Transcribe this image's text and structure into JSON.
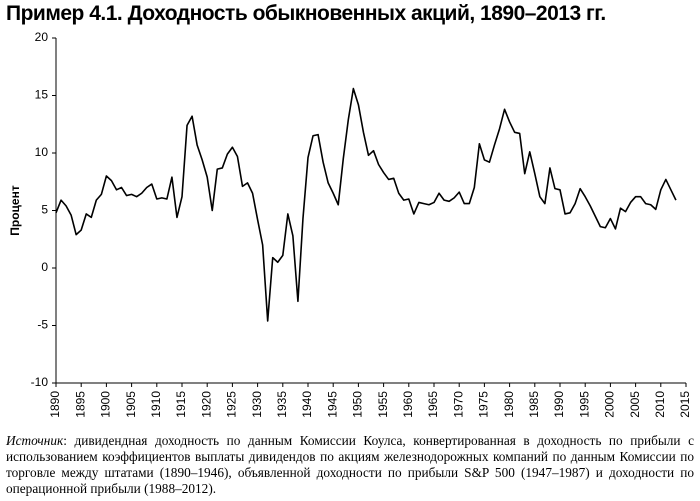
{
  "chart_data": {
    "type": "line",
    "title": "Пример 4.1. Доходность обыкновенных акций, 1890–2013 гг.",
    "y_label": "Процент",
    "note_label": "Источник",
    "note": ": дивидендная доходность по данным Комиссии Коулса, конвертированная в доходность по прибыли с использованием коэффициентов выплаты дивидендов по акциям железнодорожных компаний по данным Комиссии по торговле между штатами (1890–1946), объявленной доходности по прибыли S&P 500 (1947–1987) и доходности по операционной прибыли (1988–2012).",
    "x": [
      1890,
      1891,
      1892,
      1893,
      1894,
      1895,
      1896,
      1897,
      1898,
      1899,
      1900,
      1901,
      1902,
      1903,
      1904,
      1905,
      1906,
      1907,
      1908,
      1909,
      1910,
      1911,
      1912,
      1913,
      1914,
      1915,
      1916,
      1917,
      1918,
      1919,
      1920,
      1921,
      1922,
      1923,
      1924,
      1925,
      1926,
      1927,
      1928,
      1929,
      1930,
      1931,
      1932,
      1933,
      1934,
      1935,
      1936,
      1937,
      1938,
      1939,
      1940,
      1941,
      1942,
      1943,
      1944,
      1945,
      1946,
      1947,
      1948,
      1949,
      1950,
      1951,
      1952,
      1953,
      1954,
      1955,
      1956,
      1957,
      1958,
      1959,
      1960,
      1961,
      1962,
      1963,
      1964,
      1965,
      1966,
      1967,
      1968,
      1969,
      1970,
      1971,
      1972,
      1973,
      1974,
      1975,
      1976,
      1977,
      1978,
      1979,
      1980,
      1981,
      1982,
      1983,
      1984,
      1985,
      1986,
      1987,
      1988,
      1989,
      1990,
      1991,
      1992,
      1993,
      1994,
      1995,
      1996,
      1997,
      1998,
      1999,
      2000,
      2001,
      2002,
      2003,
      2004,
      2005,
      2006,
      2007,
      2008,
      2009,
      2010,
      2011,
      2012,
      2013
    ],
    "series": [
      {
        "color": "#000000",
        "values": [
          4.8,
          5.9,
          5.4,
          4.6,
          2.9,
          3.3,
          4.7,
          4.4,
          5.9,
          6.4,
          8.0,
          7.6,
          6.8,
          7.0,
          6.3,
          6.4,
          6.2,
          6.5,
          7.0,
          7.3,
          6.0,
          6.1,
          6.0,
          7.9,
          4.4,
          6.2,
          12.4,
          13.2,
          10.7,
          9.4,
          7.9,
          5.0,
          8.6,
          8.7,
          9.9,
          10.5,
          9.7,
          7.1,
          7.4,
          6.5,
          4.2,
          2.0,
          -4.6,
          0.9,
          0.5,
          1.1,
          4.7,
          2.8,
          -2.9,
          4.3,
          9.6,
          11.5,
          11.6,
          9.2,
          7.4,
          6.5,
          5.5,
          9.5,
          12.9,
          15.6,
          14.2,
          11.8,
          9.8,
          10.2,
          9.0,
          8.3,
          7.7,
          7.8,
          6.5,
          5.9,
          6.0,
          4.7,
          5.7,
          5.6,
          5.5,
          5.7,
          6.5,
          5.9,
          5.8,
          6.1,
          6.6,
          5.6,
          5.6,
          7.0,
          10.8,
          9.4,
          9.2,
          10.7,
          12.1,
          13.8,
          12.7,
          11.8,
          11.7,
          8.2,
          10.1,
          8.2,
          6.2,
          5.6,
          8.7,
          6.9,
          6.8,
          4.7,
          4.8,
          5.6,
          6.9,
          6.2,
          5.4,
          4.5,
          3.6,
          3.5,
          4.3,
          3.4,
          5.2,
          4.9,
          5.7,
          6.2,
          6.2,
          5.6,
          5.5,
          5.1,
          6.8,
          7.7,
          6.8,
          5.9
        ]
      }
    ],
    "xlim": [
      1890,
      2015
    ],
    "xticks": [
      1890,
      1895,
      1900,
      1905,
      1910,
      1915,
      1920,
      1925,
      1930,
      1935,
      1940,
      1945,
      1950,
      1955,
      1960,
      1965,
      1970,
      1975,
      1980,
      1985,
      1990,
      1995,
      2000,
      2005,
      2010,
      2015
    ],
    "ylim": [
      -10,
      20
    ],
    "yticks": [
      -10,
      -5,
      0,
      5,
      10,
      15,
      20
    ]
  }
}
